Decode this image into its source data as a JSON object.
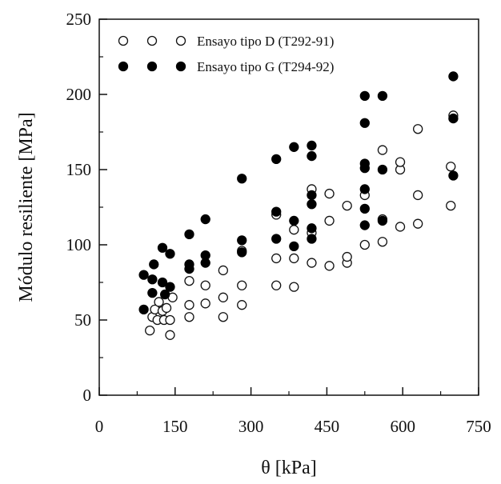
{
  "chart_data": {
    "type": "scatter",
    "title": "",
    "xlabel": "θ [kPa]",
    "ylabel": "Módulo resiliente [MPa]",
    "xlim": [
      0,
      750
    ],
    "ylim": [
      0,
      250
    ],
    "x_ticks": [
      "0",
      "150",
      "300",
      "450",
      "600",
      "750"
    ],
    "y_ticks": [
      "0",
      "50",
      "100",
      "150",
      "200",
      "250"
    ],
    "grid": false,
    "legend_position": "top-left",
    "series": [
      {
        "name": "Ensayo tipo D (T292-91)",
        "marker": "open-circle",
        "color": "#111111",
        "points": [
          [
            100,
            43
          ],
          [
            105,
            52
          ],
          [
            110,
            57
          ],
          [
            115,
            50
          ],
          [
            118,
            62
          ],
          [
            125,
            56
          ],
          [
            128,
            50
          ],
          [
            133,
            58
          ],
          [
            140,
            40
          ],
          [
            145,
            65
          ],
          [
            140,
            50
          ],
          [
            178,
            52
          ],
          [
            178,
            60
          ],
          [
            178,
            76
          ],
          [
            210,
            61
          ],
          [
            210,
            73
          ],
          [
            245,
            52
          ],
          [
            245,
            65
          ],
          [
            245,
            83
          ],
          [
            282,
            60
          ],
          [
            282,
            73
          ],
          [
            282,
            96
          ],
          [
            350,
            73
          ],
          [
            350,
            91
          ],
          [
            350,
            120
          ],
          [
            385,
            72
          ],
          [
            385,
            91
          ],
          [
            385,
            110
          ],
          [
            420,
            88
          ],
          [
            420,
            108
          ],
          [
            420,
            137
          ],
          [
            455,
            86
          ],
          [
            455,
            116
          ],
          [
            455,
            134
          ],
          [
            490,
            88
          ],
          [
            490,
            92
          ],
          [
            490,
            126
          ],
          [
            525,
            100
          ],
          [
            525,
            133
          ],
          [
            560,
            102
          ],
          [
            560,
            117
          ],
          [
            560,
            163
          ],
          [
            595,
            112
          ],
          [
            595,
            150
          ],
          [
            595,
            155
          ],
          [
            630,
            114
          ],
          [
            630,
            133
          ],
          [
            630,
            177
          ],
          [
            695,
            126
          ],
          [
            695,
            152
          ],
          [
            700,
            186
          ]
        ]
      },
      {
        "name": "Ensayo tipo G (T294-92)",
        "marker": "filled-circle",
        "color": "#000000",
        "points": [
          [
            88,
            57
          ],
          [
            88,
            80
          ],
          [
            105,
            68
          ],
          [
            105,
            77
          ],
          [
            108,
            87
          ],
          [
            125,
            75
          ],
          [
            125,
            98
          ],
          [
            130,
            67
          ],
          [
            140,
            72
          ],
          [
            140,
            94
          ],
          [
            178,
            84
          ],
          [
            178,
            87
          ],
          [
            178,
            107
          ],
          [
            210,
            88
          ],
          [
            210,
            93
          ],
          [
            210,
            117
          ],
          [
            282,
            95
          ],
          [
            282,
            103
          ],
          [
            282,
            144
          ],
          [
            350,
            104
          ],
          [
            350,
            122
          ],
          [
            350,
            157
          ],
          [
            385,
            99
          ],
          [
            385,
            116
          ],
          [
            385,
            165
          ],
          [
            420,
            104
          ],
          [
            420,
            111
          ],
          [
            420,
            127
          ],
          [
            420,
            133
          ],
          [
            420,
            159
          ],
          [
            420,
            166
          ],
          [
            525,
            113
          ],
          [
            525,
            124
          ],
          [
            525,
            137
          ],
          [
            525,
            151
          ],
          [
            525,
            154
          ],
          [
            525,
            181
          ],
          [
            525,
            199
          ],
          [
            560,
            116
          ],
          [
            560,
            150
          ],
          [
            560,
            199
          ],
          [
            700,
            146
          ],
          [
            700,
            184
          ],
          [
            700,
            212
          ]
        ]
      }
    ]
  }
}
